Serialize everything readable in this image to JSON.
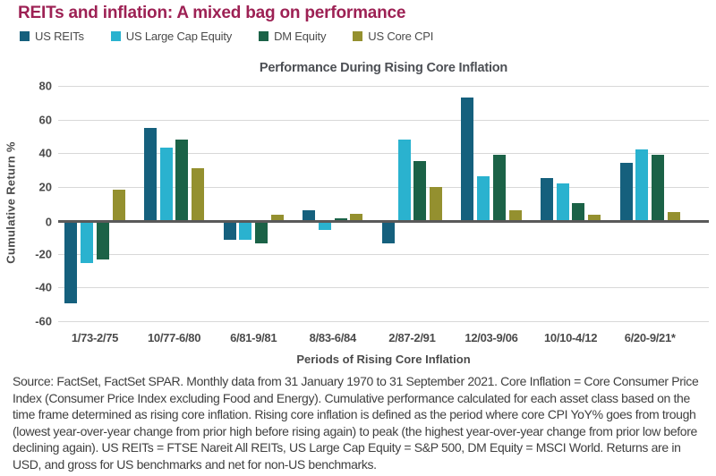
{
  "header": {
    "title": "REITs and inflation: A mixed bag on performance"
  },
  "chart_data": {
    "type": "bar",
    "title": "Performance During Rising Core Inflation",
    "xlabel": "Periods of Rising Core Inflation",
    "ylabel": "Cumulative Return %",
    "ylim": [
      -60,
      80
    ],
    "yticks": [
      80,
      60,
      40,
      20,
      0,
      -20,
      -40,
      -60
    ],
    "grid": true,
    "legend_position": "top-left, above chart",
    "categories": [
      "1/73-2/75",
      "10/77-6/80",
      "6/81-9/81",
      "8/83-6/84",
      "2/87-2/91",
      "12/03-9/06",
      "10/10-4/12",
      "6/20-9/21*"
    ],
    "series": [
      {
        "name": "US REITs",
        "color": "#15607d",
        "values": [
          -48,
          55,
          -10,
          6,
          -12,
          73,
          25,
          34
        ]
      },
      {
        "name": "US Large Cap Equity",
        "color": "#2ab2cf",
        "values": [
          -24,
          43,
          -10,
          -4,
          48,
          26,
          22,
          42
        ]
      },
      {
        "name": "DM Equity",
        "color": "#1b6247",
        "values": [
          -22,
          48,
          -12,
          1,
          35,
          39,
          10,
          39
        ]
      },
      {
        "name": "US Core CPI",
        "color": "#94902f",
        "values": [
          18,
          31,
          3,
          4,
          20,
          6,
          3,
          5
        ]
      }
    ]
  },
  "footnote": {
    "text": "Source: FactSet, FactSet SPAR. Monthly data from 31 January 1970 to 31 September 2021. Core Inflation = Core Consumer Price Index (Consumer Price Index excluding Food and Energy). Cumulative performance calculated for each asset class based on the time frame determined as rising core inflation. Rising core inflation is defined as the period where core CPI YoY% goes from trough (lowest year-over-year change from prior high before rising again) to peak (the highest year-over-year change from prior low before declining again). US REITs = FTSE Nareit All REITs, US Large Cap Equity = S&P 500, DM Equity = MSCI World. Returns are in USD, and gross for US benchmarks and net for non-US benchmarks."
  },
  "colors": {
    "title": "#9d2154",
    "axis_text": "#4b4b4b",
    "gridline": "#d8d8d8",
    "zero_line": "#595959",
    "footnote_text": "#3f3f3f"
  }
}
